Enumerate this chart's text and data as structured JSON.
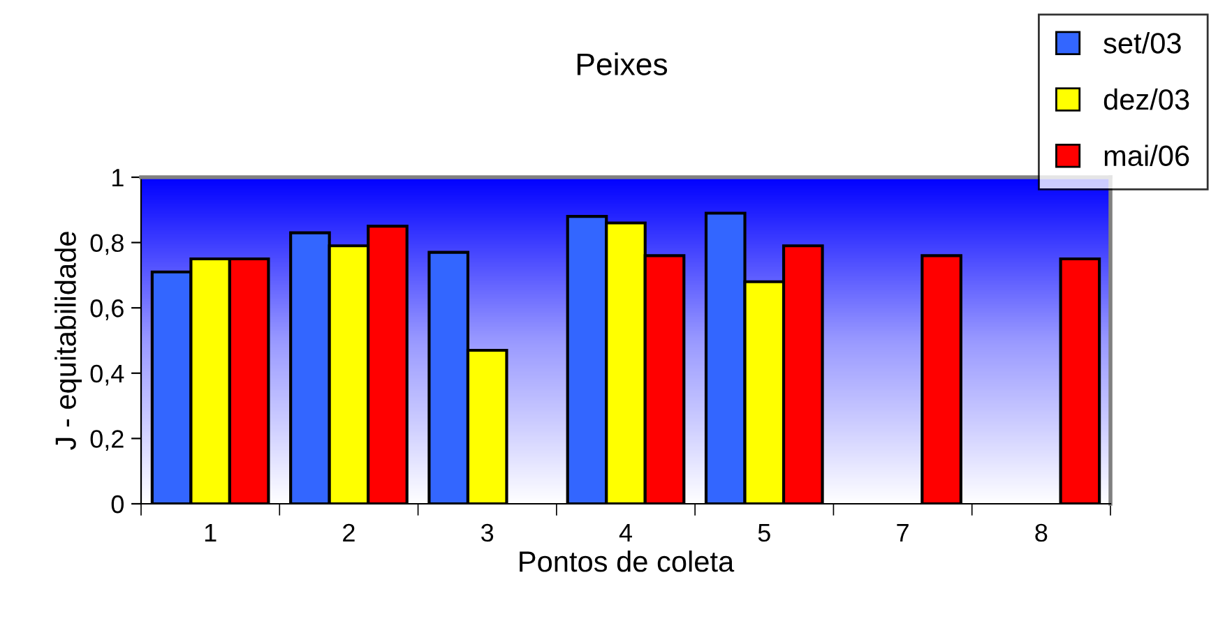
{
  "chart_data": {
    "type": "bar",
    "title": "Peixes",
    "xlabel": "Pontos de coleta",
    "ylabel": "J - equitabilidade",
    "categories": [
      "1",
      "2",
      "3",
      "4",
      "5",
      "7",
      "8"
    ],
    "series": [
      {
        "name": "set/03",
        "color": "#3366ff",
        "values": [
          0.71,
          0.83,
          0.77,
          0.88,
          0.89,
          null,
          null
        ]
      },
      {
        "name": "dez/03",
        "color": "#ffff00",
        "values": [
          0.75,
          0.79,
          0.47,
          0.86,
          0.68,
          null,
          null
        ]
      },
      {
        "name": "mai/06",
        "color": "#ff0000",
        "values": [
          0.75,
          0.85,
          null,
          0.76,
          0.79,
          0.76,
          0.75
        ]
      }
    ],
    "ylim": [
      0,
      1
    ],
    "yticks": [
      {
        "value": 0,
        "label": "0"
      },
      {
        "value": 0.2,
        "label": "0,2"
      },
      {
        "value": 0.4,
        "label": "0,4"
      },
      {
        "value": 0.6,
        "label": "0,6"
      },
      {
        "value": 0.8,
        "label": "0,8"
      },
      {
        "value": 1,
        "label": "1"
      }
    ],
    "grid": false,
    "legend": "top right"
  }
}
